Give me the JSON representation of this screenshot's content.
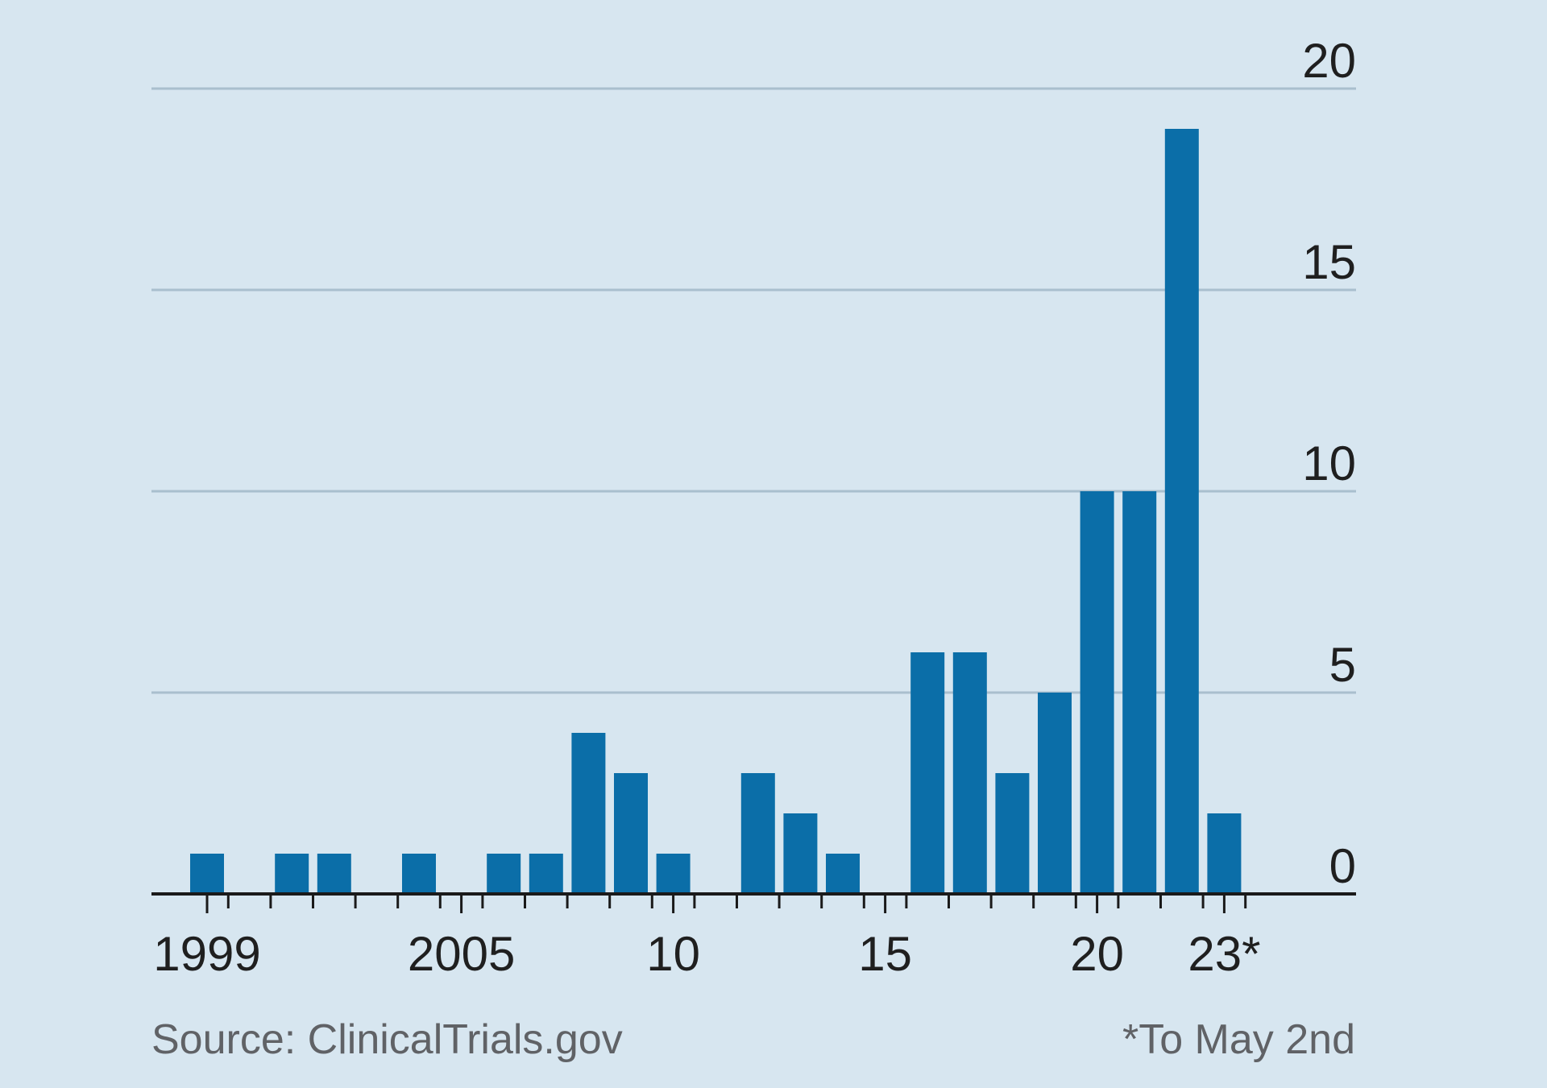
{
  "chart_data": {
    "type": "bar",
    "x": [
      1999,
      2000,
      2001,
      2002,
      2003,
      2004,
      2005,
      2006,
      2007,
      2008,
      2009,
      2010,
      2011,
      2012,
      2013,
      2014,
      2015,
      2016,
      2017,
      2018,
      2019,
      2020,
      2021,
      2022,
      2023
    ],
    "values": [
      1,
      0,
      1,
      1,
      0,
      1,
      0,
      1,
      1,
      4,
      3,
      1,
      0,
      3,
      2,
      1,
      0,
      6,
      6,
      3,
      5,
      10,
      10,
      19,
      2
    ],
    "xticks": [
      {
        "x": 1999,
        "label": "1999"
      },
      {
        "x": 2005,
        "label": "2005"
      },
      {
        "x": 2010,
        "label": "10"
      },
      {
        "x": 2015,
        "label": "15"
      },
      {
        "x": 2020,
        "label": "20"
      },
      {
        "x": 2023,
        "label": "23*"
      }
    ],
    "yticks": [
      0,
      5,
      10,
      15,
      20
    ],
    "ylim": [
      0,
      20
    ],
    "xlim": [
      1998,
      2026
    ],
    "grid": true,
    "y_axis_side": "right",
    "bar_color": "#0b6ea8",
    "gridline_color": "#a9bfce",
    "axis_color": "#1a1a1a",
    "source": "Source: ClinicalTrials.gov",
    "footnote": "*To May 2nd"
  }
}
